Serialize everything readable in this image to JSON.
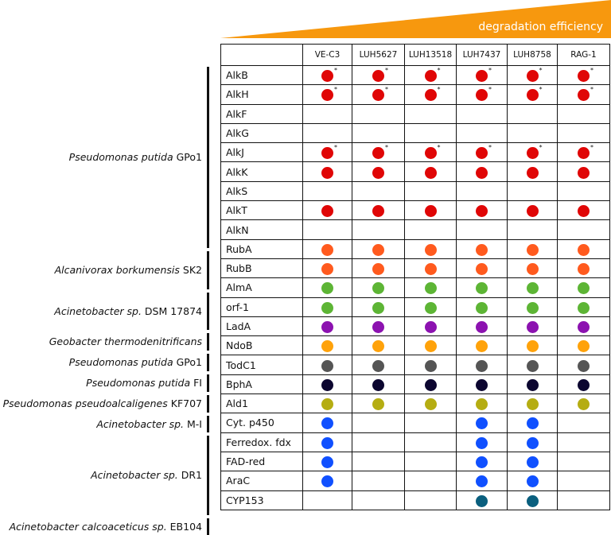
{
  "header": {
    "label": "degradation efficiency",
    "wedge_color": "#f7980e"
  },
  "strains": [
    "VE-C3",
    "LUH5627",
    "LUH13518",
    "LUH7437",
    "LUH8758",
    "RAG-1"
  ],
  "groups": [
    {
      "species": "Pseudomonas putida",
      "strain": "GPo1",
      "rows": [
        {
          "gene": "AlkB",
          "color": "#e00606",
          "present": [
            1,
            1,
            1,
            1,
            1,
            1
          ],
          "star": true
        },
        {
          "gene": "AlkH",
          "color": "#e00606",
          "present": [
            1,
            1,
            1,
            1,
            1,
            1
          ],
          "star": true
        },
        {
          "gene": "AlkF",
          "color": "#e00606",
          "present": [
            0,
            0,
            0,
            0,
            0,
            0
          ],
          "star": false
        },
        {
          "gene": "AlkG",
          "color": "#e00606",
          "present": [
            0,
            0,
            0,
            0,
            0,
            0
          ],
          "star": false
        },
        {
          "gene": "AlkJ",
          "color": "#e00606",
          "present": [
            1,
            1,
            1,
            1,
            1,
            1
          ],
          "star": true
        },
        {
          "gene": "AlkK",
          "color": "#e00606",
          "present": [
            1,
            1,
            1,
            1,
            1,
            1
          ],
          "star": false
        },
        {
          "gene": "AlkS",
          "color": "#e00606",
          "present": [
            0,
            0,
            0,
            0,
            0,
            0
          ],
          "star": false
        },
        {
          "gene": "AlkT",
          "color": "#e00606",
          "present": [
            1,
            1,
            1,
            1,
            1,
            1
          ],
          "star": false
        },
        {
          "gene": "AlkN",
          "color": "#e00606",
          "present": [
            0,
            0,
            0,
            0,
            0,
            0
          ],
          "star": false
        }
      ]
    },
    {
      "species": "Alcanivorax borkumensis",
      "strain": "SK2",
      "rows": [
        {
          "gene": "RubA",
          "color": "#ff5a1e",
          "present": [
            1,
            1,
            1,
            1,
            1,
            1
          ],
          "star": false
        },
        {
          "gene": "RubB",
          "color": "#ff5a1e",
          "present": [
            1,
            1,
            1,
            1,
            1,
            1
          ],
          "star": false
        }
      ]
    },
    {
      "species": "Acinetobacter  sp.",
      "strain": "DSM 17874",
      "rows": [
        {
          "gene": "AlmA",
          "color": "#5db535",
          "present": [
            1,
            1,
            1,
            1,
            1,
            1
          ],
          "star": false
        },
        {
          "gene": "orf-1",
          "color": "#5db535",
          "present": [
            1,
            1,
            1,
            1,
            1,
            1
          ],
          "star": false
        }
      ]
    },
    {
      "species": "Geobacter thermodenitrificans",
      "strain": "",
      "rows": [
        {
          "gene": "LadA",
          "color": "#8c12b0",
          "present": [
            1,
            1,
            1,
            1,
            1,
            1
          ],
          "star": false
        }
      ]
    },
    {
      "species": "Pseudomonas putida",
      "strain": "GPo1",
      "rows": [
        {
          "gene": "NdoB",
          "color": "#ffa20a",
          "present": [
            1,
            1,
            1,
            1,
            1,
            1
          ],
          "star": false
        }
      ]
    },
    {
      "species": "Pseudomonas putida",
      "strain": "FI",
      "rows": [
        {
          "gene": "TodC1",
          "color": "#555555",
          "present": [
            1,
            1,
            1,
            1,
            1,
            1
          ],
          "star": false
        }
      ]
    },
    {
      "species": "Pseudomonas pseudoalcaligenes",
      "strain": "KF707",
      "rows": [
        {
          "gene": "BphA",
          "color": "#0c0630",
          "present": [
            1,
            1,
            1,
            1,
            1,
            1
          ],
          "star": false
        }
      ]
    },
    {
      "species": "Acinetobacter sp.",
      "strain": "M-I",
      "rows": [
        {
          "gene": "Ald1",
          "color": "#b5ad12",
          "present": [
            1,
            1,
            1,
            1,
            1,
            1
          ],
          "star": false
        }
      ]
    },
    {
      "species": "Acinetobacter sp.",
      "strain": "DR1",
      "rows": [
        {
          "gene": "Cyt. p450",
          "color": "#1050ff",
          "present": [
            1,
            0,
            0,
            1,
            1,
            0
          ],
          "star": false
        },
        {
          "gene": "Ferredox. fdx",
          "color": "#1050ff",
          "present": [
            1,
            0,
            0,
            1,
            1,
            0
          ],
          "star": false
        },
        {
          "gene": "FAD-red",
          "color": "#1050ff",
          "present": [
            1,
            0,
            0,
            1,
            1,
            0
          ],
          "star": false
        },
        {
          "gene": "AraC",
          "color": "#1050ff",
          "present": [
            1,
            0,
            0,
            1,
            1,
            0
          ],
          "star": false
        }
      ]
    },
    {
      "species": "Acinetobacter calcoaceticus sp.",
      "strain": "EB104",
      "rows": [
        {
          "gene": "CYP153",
          "color": "#0a5f7e",
          "present": [
            0,
            0,
            0,
            1,
            1,
            0
          ],
          "star": false
        }
      ]
    }
  ],
  "star_symbol": "*"
}
